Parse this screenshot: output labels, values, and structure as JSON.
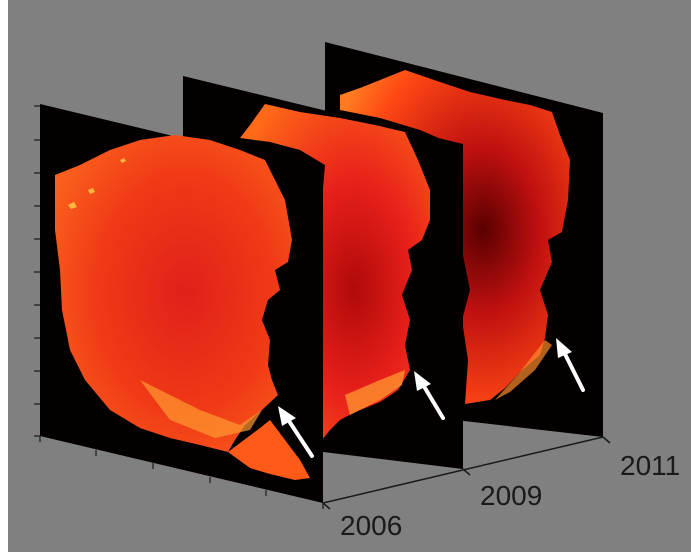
{
  "colors": {
    "figure_bg": "#ffffff",
    "axes_bg": "#808080",
    "slice_bg": "#050000",
    "heat_red": "#e0201a",
    "heat_orange": "#ff5a10",
    "heat_yellow": "#ffe060",
    "heat_dark": "#5a0000",
    "arrow": "#ffffff"
  },
  "slices": [
    {
      "year": "2011",
      "arrow": true
    },
    {
      "year": "2009",
      "arrow": true
    },
    {
      "year": "2006",
      "arrow": true
    }
  ]
}
